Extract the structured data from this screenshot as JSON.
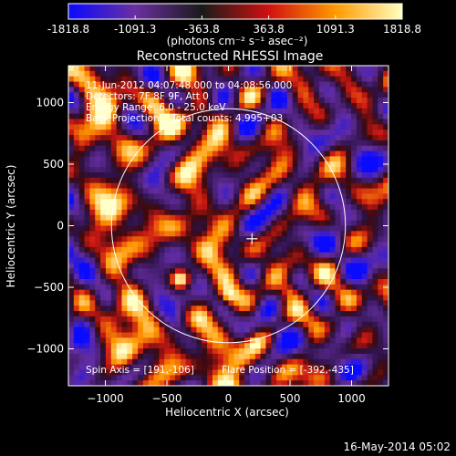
{
  "chart_data": {
    "type": "heatmap",
    "title": "Reconstructed RHESSI Image",
    "colorbar": {
      "ticks": [
        "-1818.8",
        "-1091.3",
        "-363.8",
        "363.8",
        "1091.3",
        "1818.8"
      ],
      "range": [
        -1818.8,
        1818.8
      ],
      "units_label": "(photons cm⁻² s⁻¹ asec⁻²)",
      "colors": [
        "#0a0aff",
        "#6b2fa0",
        "#1a1a1a",
        "#d01010",
        "#ff9a00",
        "#ffffc0"
      ]
    },
    "xlabel": "Heliocentric X (arcsec)",
    "ylabel": "Heliocentric Y (arcsec)",
    "xlim": [
      -1300,
      1300
    ],
    "ylim": [
      -1300,
      1300
    ],
    "xticks": [
      -1000,
      -500,
      0,
      500,
      1000
    ],
    "yticks": [
      -1000,
      -500,
      0,
      500,
      1000
    ],
    "info_lines": [
      "11-Jun-2012 04:07:48.000 to 04:08:56.000",
      "Detectors: 7F 8F 9F, Att 0",
      "Energy Range: 6.0 - 25.0 keV",
      "Back Projection    Total counts: 4.995+03"
    ],
    "spin_axis_label": "Spin Axis = [191,-106]",
    "flare_position_label": "Flare Position = [-392,-435]",
    "spin_axis": [
      191,
      -106
    ],
    "flare_position": [
      -392,
      -435
    ],
    "solar_limb_radius": 950,
    "sources": [
      {
        "x": -392,
        "y": -435,
        "peak": 1818.8
      },
      {
        "x": 0,
        "y": -570,
        "peak": 900
      },
      {
        "x": 500,
        "y": -530,
        "peak": 750
      },
      {
        "x": 220,
        "y": -950,
        "peak": 650
      },
      {
        "x": 880,
        "y": -820,
        "peak": 550
      }
    ]
  },
  "footer": {
    "date": "16-May-2014 05:02"
  }
}
